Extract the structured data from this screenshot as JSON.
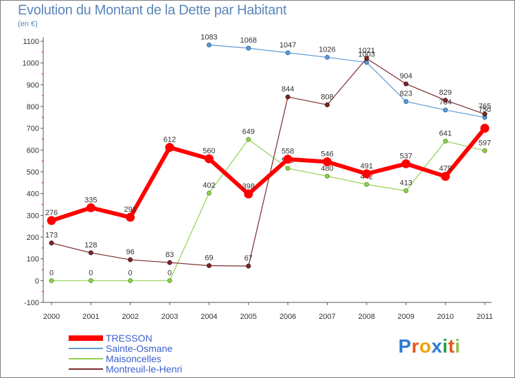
{
  "title": "Evolution du Montant de la Dette par Habitant",
  "subtitle": "(en €)",
  "logo_text": "Proxiti",
  "chart_data": {
    "type": "line",
    "title": "Evolution du Montant de la Dette par Habitant",
    "ylabel": "(en €)",
    "xlabel": "",
    "ylim": [
      -100,
      1100
    ],
    "yticks": [
      -100,
      0,
      100,
      200,
      300,
      400,
      500,
      600,
      700,
      800,
      900,
      1000,
      1100
    ],
    "grid": false,
    "legend_position": "bottom-left",
    "x": [
      "2000",
      "2001",
      "2002",
      "2003",
      "2004",
      "2005",
      "2006",
      "2007",
      "2008",
      "2009",
      "2010",
      "2011"
    ],
    "series": [
      {
        "name": "Sainte-Osmane",
        "color": "#5b9bd5",
        "values": [
          null,
          null,
          null,
          null,
          1083,
          1068,
          1047,
          1026,
          1003,
          823,
          784,
          750
        ],
        "labels": [
          "",
          "",
          "",
          "",
          "1083",
          "1068",
          "1047",
          "1026",
          "1003",
          "823",
          "784",
          "750"
        ]
      },
      {
        "name": "Maisoncelles",
        "color": "#92d050",
        "values": [
          0,
          0,
          0,
          0,
          402,
          649,
          516,
          480,
          442,
          413,
          641,
          597
        ],
        "labels": [
          "0",
          "0",
          "0",
          "0",
          "402",
          "649",
          "516",
          "480",
          "442",
          "413",
          "641",
          "597"
        ]
      },
      {
        "name": "Montreuil-le-Henri",
        "color": "#7b2a2a",
        "values": [
          173,
          128,
          96,
          83,
          69,
          67,
          844,
          808,
          1021,
          904,
          829,
          765
        ],
        "labels": [
          "173",
          "128",
          "96",
          "83",
          "69",
          "67",
          "844",
          "808",
          "1021",
          "904",
          "829",
          "765"
        ]
      },
      {
        "name": "TRESSON",
        "color": "#ff0000",
        "values": [
          276,
          335,
          291,
          612,
          560,
          398,
          558,
          546,
          491,
          537,
          479,
          700
        ],
        "labels": [
          "276",
          "335",
          "291",
          "612",
          "560",
          "398",
          "558",
          "546",
          "491",
          "537",
          "479",
          ""
        ]
      }
    ],
    "legend_order": [
      "TRESSON",
      "Sainte-Osmane",
      "Maisoncelles",
      "Montreuil-le-Henri"
    ]
  }
}
